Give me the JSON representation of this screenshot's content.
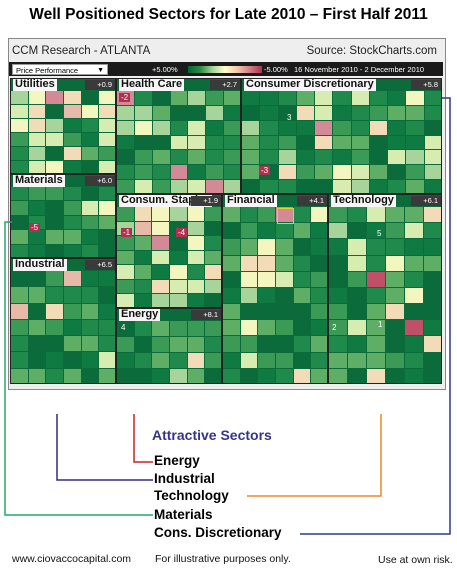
{
  "title": "Well Positioned Sectors for Late 2010 – First Half 2011",
  "header": {
    "left": "CCM Research - ATLANTA",
    "right": "Source:  StockCharts.com"
  },
  "controls": {
    "dropdown": "Price Performance",
    "legend_pos": "+5.00%",
    "legend_neg": "-5.00%",
    "date_range": "16 November 2010 - 2 December 2010"
  },
  "chart_data": {
    "type": "heatmap",
    "title": "Well Positioned Sectors for Late 2010 – First Half 2011",
    "color_scale": {
      "min_label": "-5.00%",
      "max_label": "+5.00%",
      "neg_color": "#b03050",
      "mid_color": "#ffffcc",
      "pos_color": "#006633"
    },
    "sectors": [
      {
        "name": "Utilities",
        "change": "+0.9",
        "cell_labels": []
      },
      {
        "name": "Health Care",
        "change": "+2.7",
        "cell_labels": [
          "-2"
        ]
      },
      {
        "name": "Consumer Discretionary",
        "change": "+5.8",
        "cell_labels": [
          "3",
          "-3"
        ]
      },
      {
        "name": "Materials",
        "change": "+6.0",
        "cell_labels": [
          "-5"
        ]
      },
      {
        "name": "Consum. Staples",
        "change": "+1.9",
        "cell_labels": [
          "-1",
          "-4"
        ]
      },
      {
        "name": "Financial",
        "change": "+4.1",
        "cell_labels": []
      },
      {
        "name": "Technology",
        "change": "+6.1",
        "cell_labels": [
          "5",
          "2",
          "1"
        ]
      },
      {
        "name": "Industrial",
        "change": "+6.5",
        "cell_labels": []
      },
      {
        "name": "Energy",
        "change": "+8.1",
        "cell_labels": [
          "4"
        ]
      }
    ]
  },
  "annotation": {
    "title": "Attractive Sectors",
    "items": [
      {
        "label": "Energy",
        "color": "#cc2222"
      },
      {
        "label": "Industrial",
        "color": "#3a2a7a"
      },
      {
        "label": "Technology",
        "color": "#e88a2a"
      },
      {
        "label": "Materials",
        "color": "#22aa66"
      },
      {
        "label": "Cons. Discretionary",
        "color": "#2a3a8a"
      }
    ]
  },
  "footer": {
    "left": "www.ciovaccocapital.com",
    "mid": "For illustrative purposes only.",
    "right": "Use at own risk."
  }
}
